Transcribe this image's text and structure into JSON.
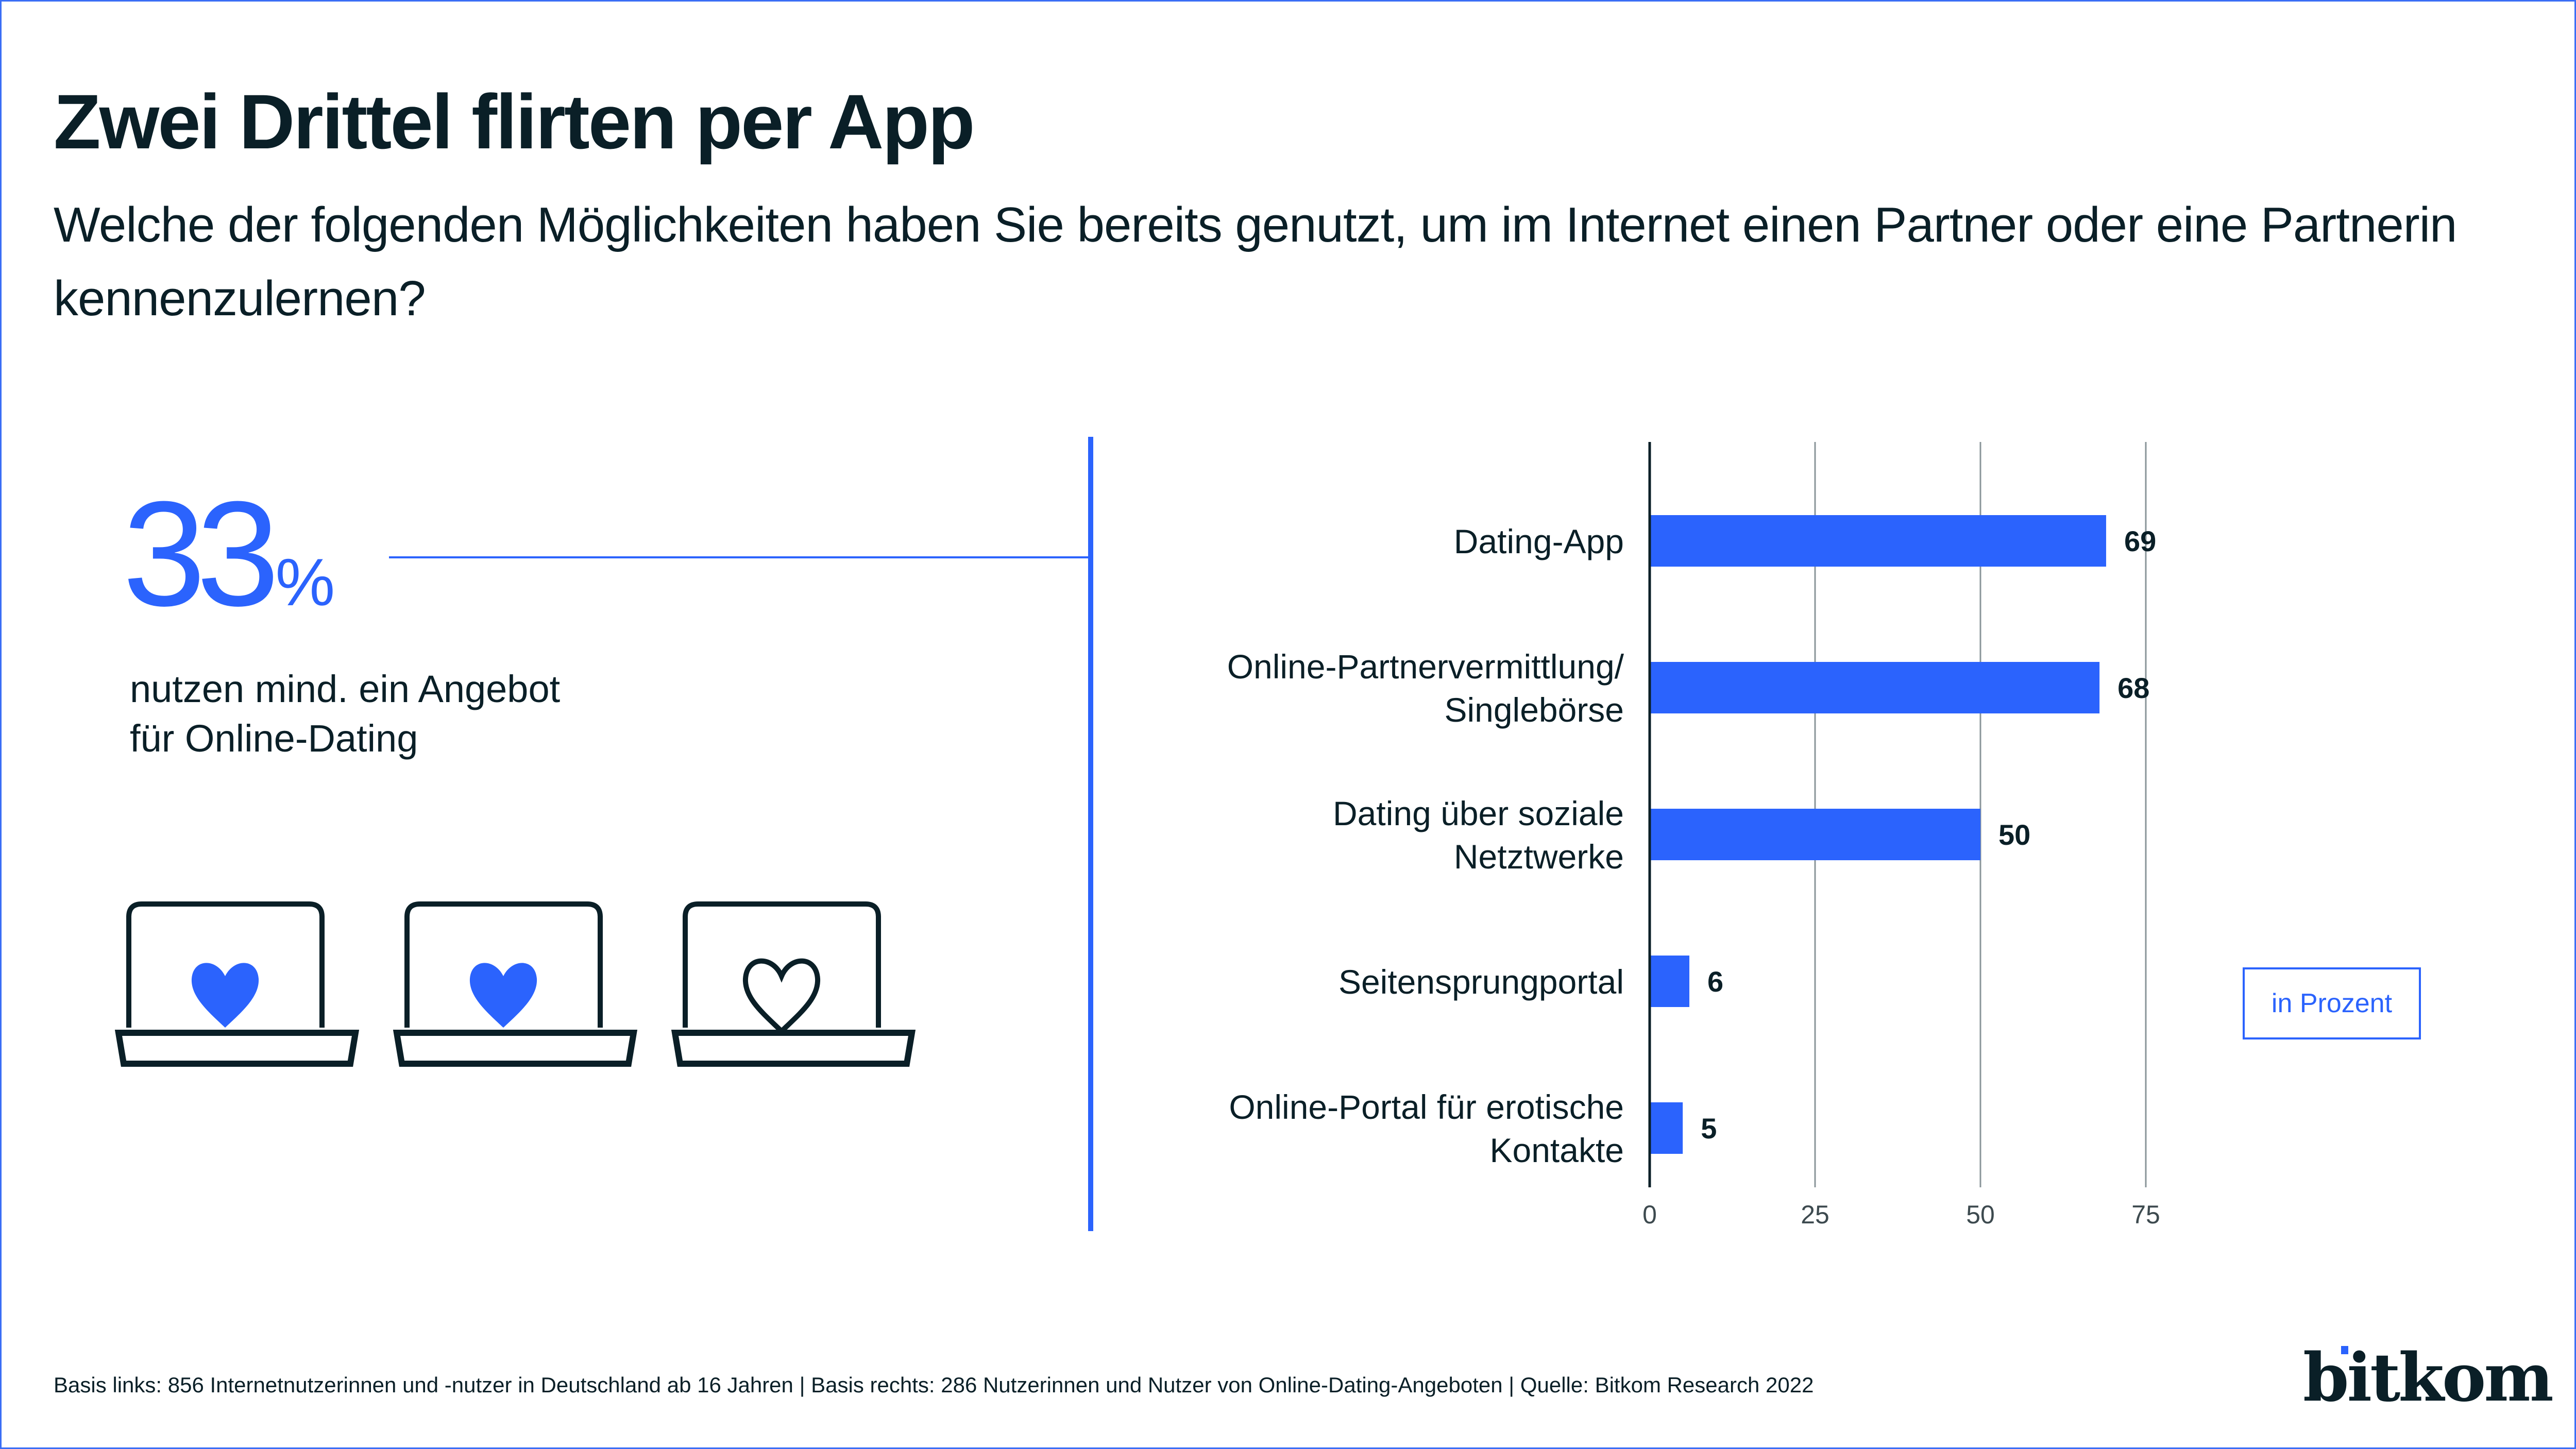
{
  "header": {
    "title": "Zwei Drittel flirten per App",
    "subtitle": "Welche der folgenden Möglichkeiten haben Sie bereits genutzt, um im Internet einen Partner oder eine Partnerin kennenzulernen?"
  },
  "kpi": {
    "value": "33",
    "unit": "%",
    "caption_line1": "nutzen mind. ein Angebot",
    "caption_line2": "für Online-Dating"
  },
  "icons": [
    {
      "name": "laptop-heart-filled-icon",
      "filled": true
    },
    {
      "name": "laptop-heart-filled-icon",
      "filled": true
    },
    {
      "name": "laptop-heart-outline-icon",
      "filled": false
    }
  ],
  "colors": {
    "accent": "#2b63fd",
    "text": "#0a1f27",
    "grid": "#8a9599",
    "axis": "#0a1f27"
  },
  "unit_box": "in Prozent",
  "footer": "Basis links: 856 Internetnutzerinnen und -nutzer in Deutschland ab 16 Jahren | Basis rechts: 286 Nutzerinnen und Nutzer von Online-Dating-Angeboten | Quelle: Bitkom Research 2022",
  "logo": "bitkom",
  "chart_data": {
    "type": "bar",
    "orientation": "horizontal",
    "title": "",
    "xlabel": "",
    "ylabel": "",
    "unit": "in Prozent",
    "categories": [
      [
        "Dating-App"
      ],
      [
        "Online-Partnervermittlung/",
        "Singlebörse"
      ],
      [
        "Dating über soziale",
        "Netztwerke"
      ],
      [
        "Seitensprungportal"
      ],
      [
        "Online-Portal für erotische",
        "Kontakte"
      ]
    ],
    "values": [
      69,
      68,
      50,
      6,
      5
    ],
    "value_labels": [
      "69",
      "68",
      "50",
      "6",
      "5"
    ],
    "xlim": [
      0,
      75
    ],
    "ticks": [
      0,
      25,
      50,
      75
    ],
    "tick_labels": [
      "0",
      "25",
      "50",
      "75"
    ],
    "grid": true,
    "legend": "none"
  }
}
